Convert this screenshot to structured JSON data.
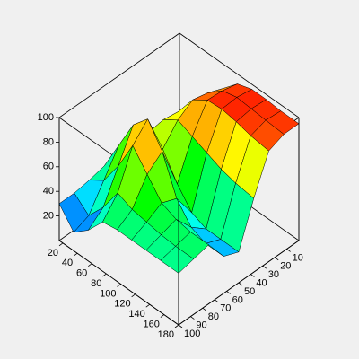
{
  "chart_data": {
    "type": "surface",
    "x": [
      15,
      35,
      55,
      75,
      95,
      115,
      135,
      155,
      180
    ],
    "y": [
      0,
      12.5,
      25,
      37.5,
      50,
      62.5,
      75,
      87.5,
      100
    ],
    "z": [
      [
        30,
        40,
        60,
        80,
        92,
        96,
        96,
        95,
        95
      ],
      [
        30,
        42,
        65,
        85,
        95,
        98,
        97,
        96,
        95
      ],
      [
        30,
        45,
        70,
        88,
        96,
        97,
        95,
        92,
        90
      ],
      [
        30,
        50,
        72,
        80,
        75,
        70,
        65,
        62,
        60
      ],
      [
        32,
        55,
        70,
        65,
        45,
        30,
        25,
        25,
        25
      ],
      [
        35,
        60,
        85,
        98,
        80,
        50,
        35,
        30,
        30
      ],
      [
        32,
        40,
        60,
        85,
        70,
        55,
        50,
        48,
        48
      ],
      [
        30,
        20,
        35,
        55,
        50,
        48,
        46,
        45,
        45
      ],
      [
        30,
        15,
        25,
        40,
        42,
        42,
        42,
        42,
        42
      ]
    ],
    "xlim": [
      15,
      180
    ],
    "ylim": [
      0,
      100
    ],
    "zlim": [
      0,
      100
    ],
    "xticks": [
      20,
      40,
      60,
      80,
      100,
      120,
      140,
      160,
      180
    ],
    "yticks": [
      10,
      20,
      30,
      40,
      50,
      60,
      70,
      80,
      90,
      100
    ],
    "zticks": [
      20,
      40,
      60,
      80,
      100
    ]
  }
}
